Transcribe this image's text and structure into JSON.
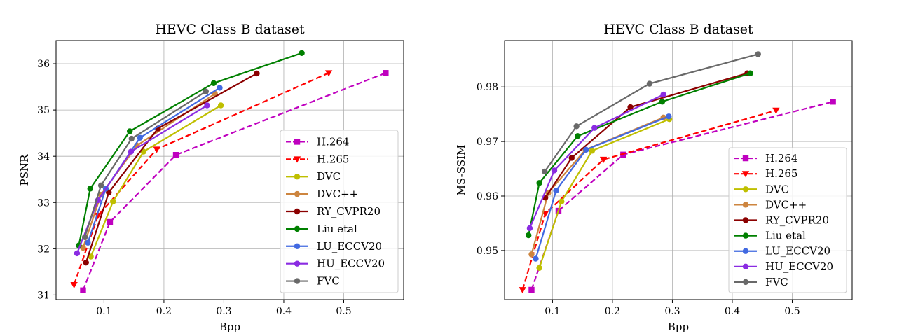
{
  "chart_data": [
    {
      "type": "line",
      "title": "HEVC Class B dataset",
      "xlabel": "Bpp",
      "ylabel": "PSNR",
      "xlim": [
        0.02,
        0.6
      ],
      "ylim": [
        30.9,
        36.5
      ],
      "xticks": [
        0.1,
        0.2,
        0.3,
        0.4,
        0.5
      ],
      "xtick_labels": [
        "0.1",
        "0.2",
        "0.3",
        "0.4",
        "0.5"
      ],
      "yticks": [
        31,
        32,
        33,
        34,
        35,
        36
      ],
      "ytick_labels": [
        "31",
        "32",
        "33",
        "34",
        "35",
        "36"
      ],
      "grid": true,
      "legend": "lower-right",
      "series": [
        {
          "name": "H.264",
          "color": "#bf00bf",
          "dash": "dashed",
          "marker": "square",
          "x": [
            0.065,
            0.11,
            0.22,
            0.57
          ],
          "y": [
            31.1,
            32.58,
            34.03,
            35.8
          ]
        },
        {
          "name": "H.265",
          "color": "#ff0000",
          "dash": "dashed",
          "marker": "triangle-down",
          "x": [
            0.05,
            0.09,
            0.188,
            0.475
          ],
          "y": [
            31.22,
            32.72,
            34.15,
            35.8
          ]
        },
        {
          "name": "DVC",
          "color": "#bfbf00",
          "dash": "solid",
          "marker": "circle",
          "x": [
            0.078,
            0.115,
            0.166,
            0.295
          ],
          "y": [
            31.83,
            33.02,
            34.1,
            35.1
          ]
        },
        {
          "name": "DVC++",
          "color": "#cd853f",
          "dash": "solid",
          "marker": "circle",
          "x": [
            0.065,
            0.095,
            0.155,
            0.285
          ],
          "y": [
            32.02,
            33.17,
            34.23,
            35.35
          ]
        },
        {
          "name": "RY_CVPR20",
          "color": "#8b0000",
          "dash": "solid",
          "marker": "circle",
          "x": [
            0.07,
            0.108,
            0.19,
            0.355
          ],
          "y": [
            31.7,
            33.22,
            34.6,
            35.79
          ]
        },
        {
          "name": "Liu etal",
          "color": "#008000",
          "dash": "solid",
          "marker": "circle",
          "x": [
            0.058,
            0.077,
            0.143,
            0.283,
            0.43
          ],
          "y": [
            32.07,
            33.3,
            34.54,
            35.58,
            36.23
          ]
        },
        {
          "name": "LU_ECCV20",
          "color": "#4169e1",
          "dash": "solid",
          "marker": "circle",
          "x": [
            0.073,
            0.103,
            0.16,
            0.293
          ],
          "y": [
            32.13,
            33.3,
            34.4,
            35.48
          ]
        },
        {
          "name": "HU_ECCV20",
          "color": "#8a2be2",
          "dash": "solid",
          "marker": "circle",
          "x": [
            0.055,
            0.09,
            0.145,
            0.272
          ],
          "y": [
            31.9,
            33.05,
            34.1,
            35.1
          ]
        },
        {
          "name": "FVC",
          "color": "#696969",
          "dash": "solid",
          "marker": "circle",
          "x": [
            0.068,
            0.095,
            0.146,
            0.27
          ],
          "y": [
            32.25,
            33.37,
            34.38,
            35.4
          ]
        }
      ]
    },
    {
      "type": "line",
      "title": "HEVC Class B dataset",
      "xlabel": "Bpp",
      "ylabel": "MS-SSIM",
      "xlim": [
        0.02,
        0.6
      ],
      "ylim": [
        0.941,
        0.9885
      ],
      "xticks": [
        0.1,
        0.2,
        0.3,
        0.4,
        0.5
      ],
      "xtick_labels": [
        "0.1",
        "0.2",
        "0.3",
        "0.4",
        "0.5"
      ],
      "yticks": [
        0.95,
        0.96,
        0.97,
        0.98
      ],
      "ytick_labels": [
        "0.95",
        "0.96",
        "0.97",
        "0.98"
      ],
      "grid": true,
      "legend": "lower-right",
      "series": [
        {
          "name": "H.264",
          "color": "#bf00bf",
          "dash": "dashed",
          "marker": "square",
          "x": [
            0.065,
            0.11,
            0.218,
            0.568
          ],
          "y": [
            0.9428,
            0.9573,
            0.9676,
            0.9773
          ]
        },
        {
          "name": "H.265",
          "color": "#ff0000",
          "dash": "dashed",
          "marker": "triangle-down",
          "x": [
            0.05,
            0.088,
            0.185,
            0.473
          ],
          "y": [
            0.9428,
            0.9568,
            0.9667,
            0.9757
          ]
        },
        {
          "name": "DVC",
          "color": "#bfbf00",
          "dash": "solid",
          "marker": "circle",
          "x": [
            0.078,
            0.115,
            0.166,
            0.295
          ],
          "y": [
            0.9468,
            0.959,
            0.9683,
            0.9741
          ]
        },
        {
          "name": "DVC++",
          "color": "#cd853f",
          "dash": "solid",
          "marker": "circle",
          "x": [
            0.065,
            0.093,
            0.155,
            0.285
          ],
          "y": [
            0.9493,
            0.9606,
            0.9685,
            0.9744
          ]
        },
        {
          "name": "RY_CVPR20",
          "color": "#8b0000",
          "dash": "solid",
          "marker": "circle",
          "x": [
            0.088,
            0.132,
            0.23,
            0.425
          ],
          "y": [
            0.9597,
            0.967,
            0.9763,
            0.9825
          ]
        },
        {
          "name": "Liu etal",
          "color": "#008000",
          "dash": "solid",
          "marker": "circle",
          "x": [
            0.06,
            0.078,
            0.142,
            0.283,
            0.43
          ],
          "y": [
            0.9528,
            0.9624,
            0.971,
            0.9773,
            0.9825
          ]
        },
        {
          "name": "LU_ECCV20",
          "color": "#4169e1",
          "dash": "solid",
          "marker": "circle",
          "x": [
            0.072,
            0.106,
            0.156,
            0.294
          ],
          "y": [
            0.9485,
            0.961,
            0.9685,
            0.9746
          ]
        },
        {
          "name": "HU_ECCV20",
          "color": "#8a2be2",
          "dash": "solid",
          "marker": "circle",
          "x": [
            0.062,
            0.103,
            0.17,
            0.285
          ],
          "y": [
            0.9541,
            0.9647,
            0.9725,
            0.9786
          ]
        },
        {
          "name": "FVC",
          "color": "#696969",
          "dash": "solid",
          "marker": "circle",
          "x": [
            0.087,
            0.14,
            0.262,
            0.443
          ],
          "y": [
            0.9645,
            0.9728,
            0.9806,
            0.986
          ]
        }
      ]
    }
  ]
}
